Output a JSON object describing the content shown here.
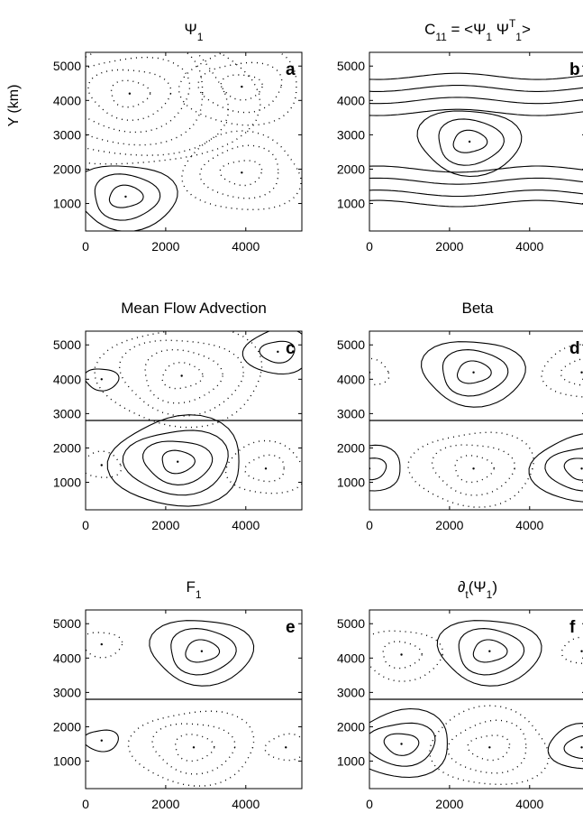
{
  "chart_data": [
    {
      "type": "contour",
      "panel": "a",
      "title": "Ψ",
      "title_sub": "1",
      "ylabel": "Y (km)",
      "xticks": [
        "0",
        "2000",
        "4000"
      ],
      "yticks": [
        "1000",
        "2000",
        "3000",
        "4000",
        "5000"
      ],
      "xlim": [
        0,
        5400
      ],
      "ylim": [
        200,
        5400
      ],
      "features": [
        {
          "x": 1000,
          "y": 1200,
          "sign": "positive",
          "levels": 3
        },
        {
          "x": 1100,
          "y": 4200,
          "sign": "negative",
          "levels": 6
        },
        {
          "x": 3900,
          "y": 4400,
          "sign": "negative",
          "levels": 3
        },
        {
          "x": 3900,
          "y": 1900,
          "sign": "negative",
          "levels": 3
        }
      ]
    },
    {
      "type": "contour",
      "panel": "b",
      "title": "C",
      "title_sub": "11",
      "title_rest": " = <Ψ",
      "title_sub2": "1",
      "title_rest2": " Ψ",
      "title_sup": "T",
      "title_sub3": "1",
      "title_end": ">",
      "xticks": [
        "0",
        "2000",
        "4000"
      ],
      "yticks": [
        "1000",
        "2000",
        "3000",
        "4000",
        "5000"
      ],
      "xlim": [
        0,
        5400
      ],
      "ylim": [
        200,
        5400
      ],
      "features": [
        {
          "x": 2500,
          "y": 2800,
          "sign": "positive",
          "levels": 3
        },
        {
          "type": "zonal-band",
          "y_levels": [
            1000,
            1300,
            1650,
            2000,
            3650,
            4000,
            4350,
            4700
          ]
        }
      ]
    },
    {
      "type": "contour",
      "panel": "c",
      "title": "Mean Flow Advection",
      "xticks": [
        "0",
        "2000",
        "4000"
      ],
      "yticks": [
        "1000",
        "2000",
        "3000",
        "4000",
        "5000"
      ],
      "xlim": [
        0,
        5400
      ],
      "ylim": [
        200,
        5400
      ],
      "interface_y": 2800,
      "features": [
        {
          "x": 2400,
          "y": 4100,
          "sign": "negative",
          "levels": 4
        },
        {
          "x": 2300,
          "y": 1600,
          "sign": "positive",
          "levels": 4
        },
        {
          "x": 400,
          "y": 4000,
          "sign": "positive",
          "levels": 1
        },
        {
          "x": 4800,
          "y": 4800,
          "sign": "positive",
          "levels": 2
        },
        {
          "x": 4500,
          "y": 1400,
          "sign": "negative",
          "levels": 2
        },
        {
          "x": 400,
          "y": 1500,
          "sign": "negative",
          "levels": 1
        }
      ]
    },
    {
      "type": "contour",
      "panel": "d",
      "title": "Beta",
      "xticks": [
        "0",
        "2000",
        "4000"
      ],
      "yticks": [
        "1000",
        "2000",
        "3000",
        "4000",
        "5000"
      ],
      "xlim": [
        0,
        5400
      ],
      "ylim": [
        200,
        5400
      ],
      "interface_y": 2800,
      "features": [
        {
          "x": 2600,
          "y": 4200,
          "sign": "positive",
          "levels": 3
        },
        {
          "x": 2600,
          "y": 1400,
          "sign": "negative",
          "levels": 3
        },
        {
          "x": 5300,
          "y": 1400,
          "sign": "positive",
          "levels": 3
        },
        {
          "x": 0,
          "y": 1400,
          "sign": "positive",
          "levels": 2
        },
        {
          "x": 5300,
          "y": 4200,
          "sign": "negative",
          "levels": 2
        },
        {
          "x": 0,
          "y": 4200,
          "sign": "negative",
          "levels": 1
        }
      ]
    },
    {
      "type": "contour",
      "panel": "e",
      "title": "F",
      "title_sub": "1",
      "xticks": [
        "0",
        "2000",
        "4000"
      ],
      "yticks": [
        "1000",
        "2000",
        "3000",
        "4000",
        "5000"
      ],
      "xlim": [
        0,
        5400
      ],
      "ylim": [
        200,
        5400
      ],
      "interface_y": 2800,
      "features": [
        {
          "x": 2900,
          "y": 4200,
          "sign": "positive",
          "levels": 3
        },
        {
          "x": 2700,
          "y": 1400,
          "sign": "negative",
          "levels": 3
        },
        {
          "x": 400,
          "y": 4400,
          "sign": "negative",
          "levels": 1
        },
        {
          "x": 400,
          "y": 1600,
          "sign": "positive",
          "levels": 1
        },
        {
          "x": 5000,
          "y": 1400,
          "sign": "negative",
          "levels": 1
        }
      ]
    },
    {
      "type": "contour",
      "panel": "f",
      "title": "∂",
      "title_sub": "t",
      "title_rest": "(Ψ",
      "title_sub2": "1",
      "title_end": ")",
      "xticks": [
        "0",
        "2000",
        "4000"
      ],
      "yticks": [
        "1000",
        "2000",
        "3000",
        "4000",
        "5000"
      ],
      "xlim": [
        0,
        5400
      ],
      "ylim": [
        200,
        5400
      ],
      "interface_y": 2800,
      "features": [
        {
          "x": 3000,
          "y": 4200,
          "sign": "positive",
          "levels": 3
        },
        {
          "x": 800,
          "y": 4100,
          "sign": "negative",
          "levels": 2
        },
        {
          "x": 800,
          "y": 1500,
          "sign": "positive",
          "levels": 3
        },
        {
          "x": 3000,
          "y": 1400,
          "sign": "negative",
          "levels": 3
        },
        {
          "x": 5300,
          "y": 1400,
          "sign": "positive",
          "levels": 2
        },
        {
          "x": 5300,
          "y": 4200,
          "sign": "negative",
          "levels": 1
        }
      ]
    }
  ]
}
